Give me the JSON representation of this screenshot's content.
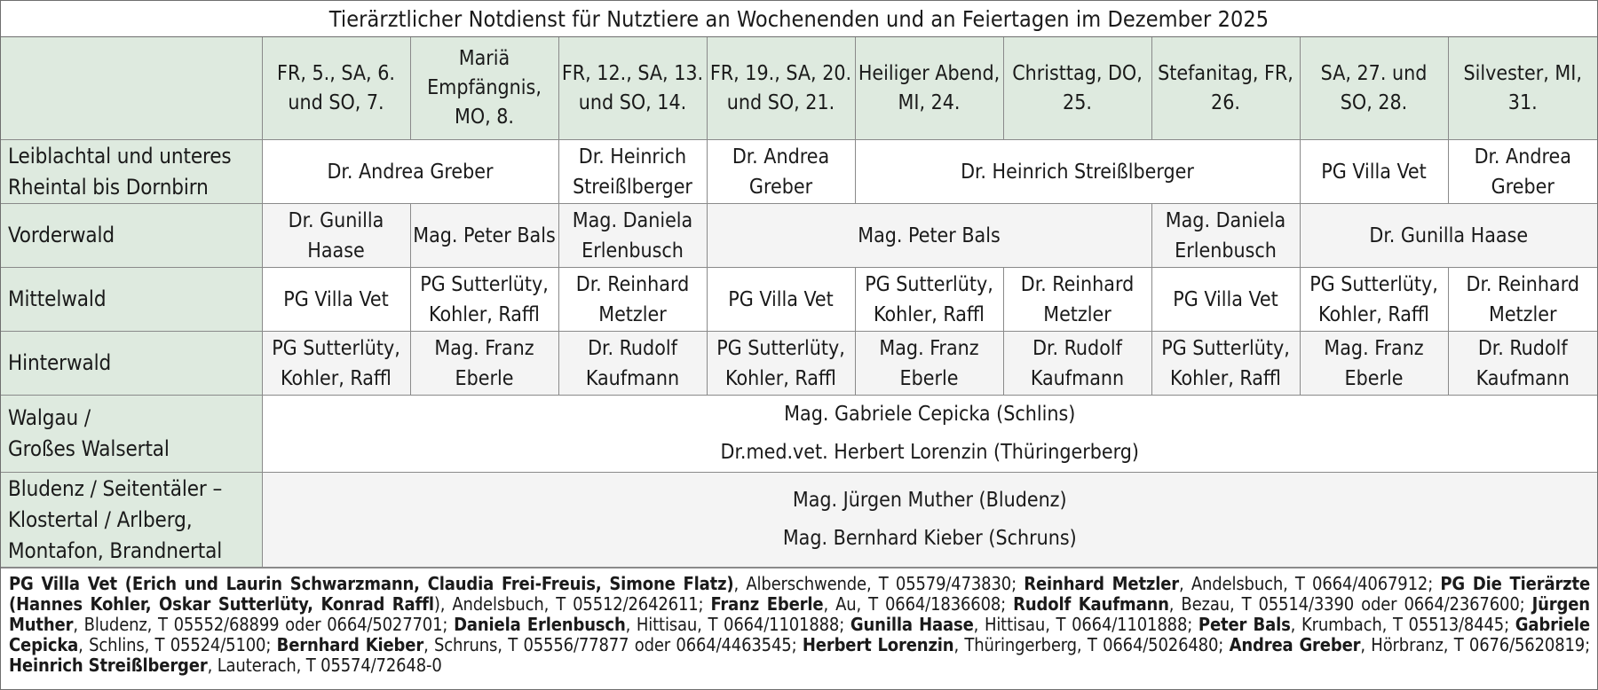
{
  "title": "Tierärztlicher Notdienst für Nutztiere an Wochenenden und an Feiertagen im Dezember 2025",
  "columns": [
    "FR, 5., SA, 6. und SO, 7.",
    "Mariä Empfängnis, MO, 8.",
    "FR, 12., SA, 13. und SO, 14.",
    "FR, 19., SA, 20. und SO, 21.",
    "Heiliger Abend, MI, 24.",
    "Christtag, DO, 25.",
    "Stefanitag, FR, 26.",
    "SA, 27. und SO, 28.",
    "Silvester, MI, 31."
  ],
  "rows": {
    "leiblachtal": {
      "region": "Leiblachtal und unteres Rheintal bis Dornbirn",
      "cells": [
        "Dr. Andrea Greber",
        "Dr. Heinrich Streißlberger",
        "Dr. Andrea Greber",
        "Dr. Heinrich Streißlberger",
        "PG Villa Vet",
        "Dr. Andrea Greber"
      ]
    },
    "vorderwald": {
      "region": "Vorderwald",
      "cells": [
        "Dr. Gunilla Haase",
        "Mag. Peter Bals",
        "Mag. Daniela Erlenbusch",
        "Mag. Peter Bals",
        "Mag. Daniela Erlenbusch",
        "Dr. Gunilla Haase"
      ]
    },
    "mittelwald": {
      "region": "Mittelwald",
      "cells": [
        "PG Villa Vet",
        "PG Sutterlüty, Kohler, Raffl",
        "Dr. Reinhard Metzler",
        "PG Villa Vet",
        "PG Sutterlüty, Kohler, Raffl",
        "Dr. Reinhard Metzler",
        "PG Villa Vet",
        "PG Sutterlüty, Kohler, Raffl",
        "Dr. Reinhard Metzler"
      ]
    },
    "hinterwald": {
      "region": "Hinterwald",
      "cells": [
        "PG Sutterlüty, Kohler, Raffl",
        "Mag. Franz Eberle",
        "Dr. Rudolf Kaufmann",
        "PG Sutterlüty, Kohler, Raffl",
        "Mag. Franz Eberle",
        "Dr. Rudolf Kaufmann",
        "PG Sutterlüty, Kohler, Raffl",
        "Mag. Franz Eberle",
        "Dr. Rudolf Kaufmann"
      ]
    },
    "walgau": {
      "region_line1": "Walgau /",
      "region_line2": "Großes Walsertal",
      "line1": "Mag. Gabriele Cepicka (Schlins)",
      "line2": "Dr.med.vet. Herbert Lorenzin (Thüringerberg)"
    },
    "bludenz": {
      "region_line1": "Bludenz / Seitentäler –",
      "region_line2": "Klostertal / Arlberg,",
      "region_line3": "Montafon, Brandnertal",
      "line1": "Mag. Jürgen Muther (Bludenz)",
      "line2": "Mag. Bernhard Kieber (Schruns)"
    }
  },
  "footer": [
    {
      "b": "PG Villa Vet (Erich und Laurin Schwarzmann, Claudia Frei-Freuis, Simone Flatz)",
      "t": ", Alberschwende, T 05579/473830; "
    },
    {
      "b": "Reinhard Metzler",
      "t": ", Andelsbuch, T 0664/4067912; "
    },
    {
      "b": "PG Die Tierärzte (Hannes Kohler, Oskar Sutterlüty, Konrad Raffl",
      "t": "), Andelsbuch, T 05512/2642611; "
    },
    {
      "b": "Franz Eberle",
      "t": ", Au, T 0664/1836608; "
    },
    {
      "b": "Rudolf Kaufmann",
      "t": ", Bezau, T 05514/3390 oder 0664/2367600; "
    },
    {
      "b": "Jürgen Muther",
      "t": ", Bludenz, T 05552/68899 oder 0664/5027701; "
    },
    {
      "b": "Daniela Erlenbusch",
      "t": ", Hittisau, T 0664/1101888; "
    },
    {
      "b": "Gunilla Haase",
      "t": ", Hittisau, T 0664/1101888; "
    },
    {
      "b": "Peter Bals",
      "t": ", Krumbach, T 05513/8445; "
    },
    {
      "b": "Gabriele Cepicka",
      "t": ", Schlins, T 05524/5100; "
    },
    {
      "b": "Bernhard Kieber",
      "t": ", Schruns, T 05556/77877 oder 0664/4463545; "
    },
    {
      "b": "Herbert Lorenzin",
      "t": ", Thüringerberg, T 0664/5026480; "
    },
    {
      "b": "Andrea Greber",
      "t": ", Hörbranz, T 0676/5620819; "
    },
    {
      "b": "Heinrich Streißlberger",
      "t": ", Lauterach, T 05574/72648-0"
    }
  ]
}
